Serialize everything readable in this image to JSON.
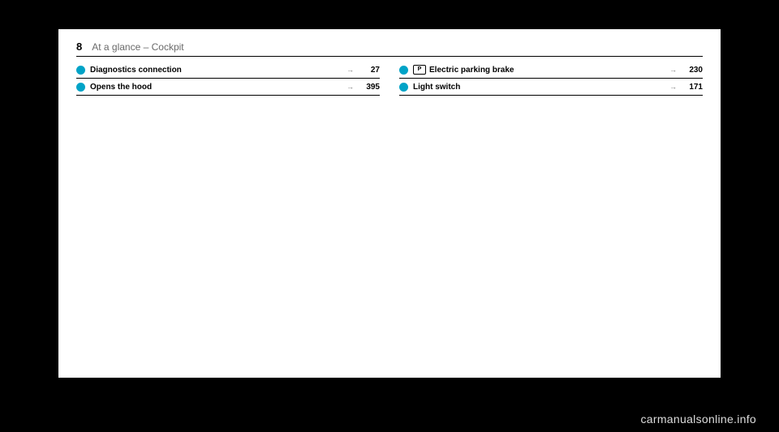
{
  "header": {
    "page_number": "8",
    "title": "At a glance – Cockpit"
  },
  "columns": {
    "left": [
      {
        "marker_color": "#00a3c7",
        "label": "Diagnostics connection",
        "page": "27"
      },
      {
        "marker_color": "#00a3c7",
        "label": "Opens the hood",
        "page": "395"
      }
    ],
    "right": [
      {
        "marker_color": "#00a3c7",
        "square_icon": "P",
        "label": "Electric parking brake",
        "page": "230"
      },
      {
        "marker_color": "#00a3c7",
        "label": "Light switch",
        "page": "171"
      }
    ]
  },
  "arrow_glyph": "→",
  "watermark": "carmanualsonline.info"
}
